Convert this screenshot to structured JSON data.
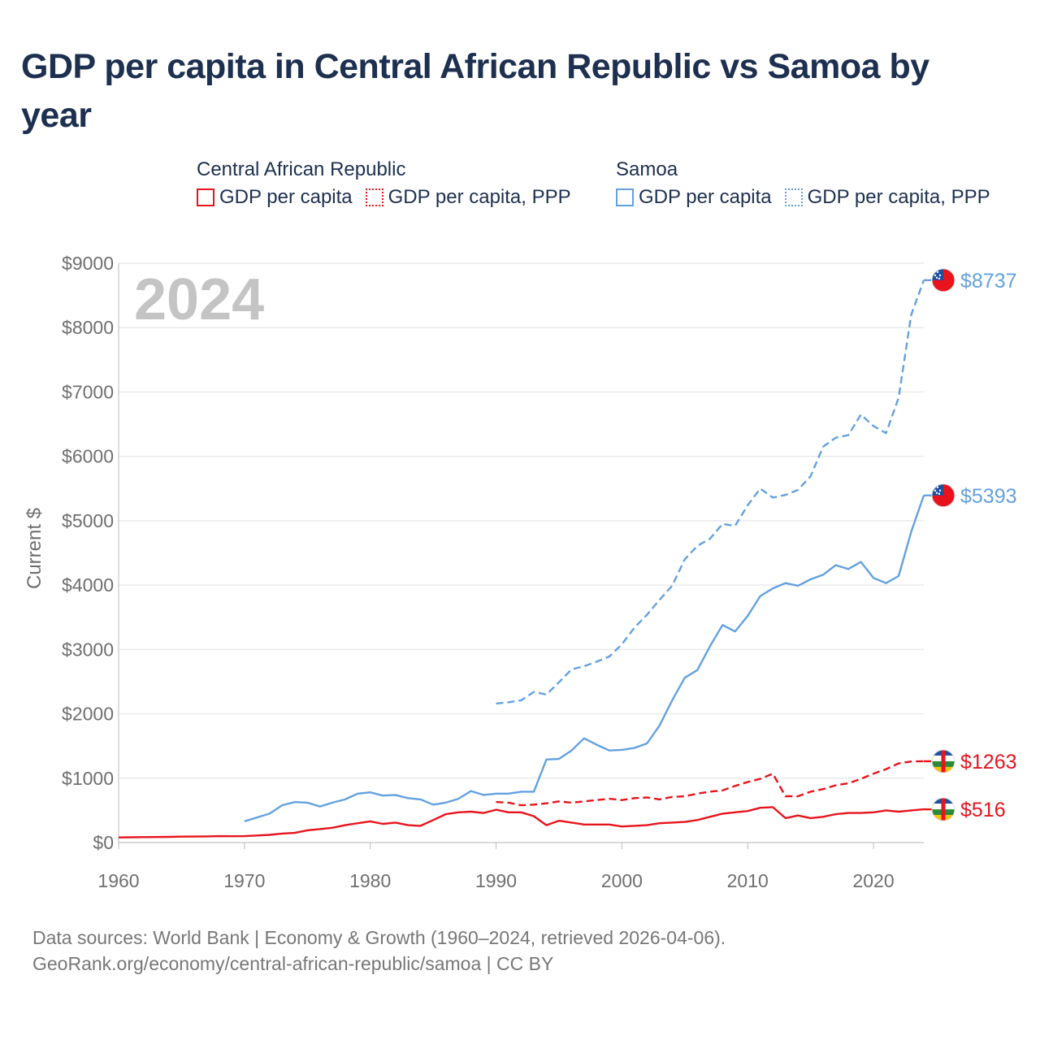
{
  "title": "GDP per capita in Central African Republic vs Samoa by year",
  "legend": {
    "groups": [
      {
        "name": "Central African Republic",
        "color": "#e8141d",
        "items": [
          "GDP per capita",
          "GDP per capita, PPP"
        ]
      },
      {
        "name": "Samoa",
        "color": "#63a1e0",
        "items": [
          "GDP per capita",
          "GDP per capita, PPP"
        ]
      }
    ]
  },
  "source": {
    "line1": "Data sources: World Bank | Economy & Growth (1960–2024, retrieved 2026-04-06).",
    "line2": "GeoRank.org/economy/central-african-republic/samoa | CC BY"
  },
  "chart_data": {
    "type": "line",
    "year_badge": "2024",
    "ylabel": "Current $",
    "xlabel": "",
    "xlim": [
      1960,
      2024
    ],
    "ylim": [
      0,
      9000
    ],
    "grid": true,
    "x_ticks": [
      1960,
      1970,
      1980,
      1990,
      2000,
      2010,
      2020
    ],
    "y_ticks": [
      0,
      1000,
      2000,
      3000,
      4000,
      5000,
      6000,
      7000,
      8000,
      9000
    ],
    "y_tick_labels": [
      "$0",
      "$1000",
      "$2000",
      "$3000",
      "$4000",
      "$5000",
      "$6000",
      "$7000",
      "$8000",
      "$9000"
    ],
    "series": [
      {
        "name": "Samoa GDP per capita, PPP",
        "country": "Samoa",
        "color": "#63a1e0",
        "dash": "dashed",
        "end_label": "$8737",
        "x": [
          1990,
          1991,
          1992,
          1993,
          1994,
          1995,
          1996,
          1997,
          1998,
          1999,
          2000,
          2001,
          2002,
          2003,
          2004,
          2005,
          2006,
          2007,
          2008,
          2009,
          2010,
          2011,
          2012,
          2013,
          2014,
          2015,
          2016,
          2017,
          2018,
          2019,
          2020,
          2021,
          2022,
          2023,
          2024
        ],
        "y": [
          2160,
          2180,
          2210,
          2340,
          2300,
          2490,
          2690,
          2740,
          2810,
          2890,
          3080,
          3340,
          3540,
          3770,
          3990,
          4400,
          4610,
          4720,
          4950,
          4920,
          5240,
          5500,
          5360,
          5400,
          5480,
          5690,
          6150,
          6290,
          6330,
          6650,
          6470,
          6360,
          6910,
          8200,
          8737
        ]
      },
      {
        "name": "Samoa GDP per capita",
        "country": "Samoa",
        "color": "#63a1e0",
        "dash": "solid",
        "end_label": "$5393",
        "x": [
          1970,
          1971,
          1972,
          1973,
          1974,
          1975,
          1976,
          1977,
          1978,
          1979,
          1980,
          1981,
          1982,
          1983,
          1984,
          1985,
          1986,
          1987,
          1988,
          1989,
          1990,
          1991,
          1992,
          1993,
          1994,
          1995,
          1996,
          1997,
          1998,
          1999,
          2000,
          2001,
          2002,
          2003,
          2004,
          2005,
          2006,
          2007,
          2008,
          2009,
          2010,
          2011,
          2012,
          2013,
          2014,
          2015,
          2016,
          2017,
          2018,
          2019,
          2020,
          2021,
          2022,
          2023,
          2024
        ],
        "y": [
          330,
          390,
          450,
          580,
          630,
          620,
          560,
          620,
          670,
          760,
          780,
          730,
          740,
          690,
          670,
          590,
          620,
          680,
          800,
          740,
          760,
          760,
          790,
          790,
          1290,
          1300,
          1430,
          1620,
          1520,
          1430,
          1440,
          1470,
          1540,
          1820,
          2210,
          2560,
          2680,
          3050,
          3380,
          3280,
          3520,
          3830,
          3950,
          4030,
          3990,
          4090,
          4160,
          4310,
          4250,
          4360,
          4110,
          4030,
          4140,
          4830,
          5393
        ]
      },
      {
        "name": "Central African Republic GDP per capita, PPP",
        "country": "Central African Republic",
        "color": "#e8141d",
        "dash": "dashed",
        "end_label": "$1263",
        "x": [
          1990,
          1991,
          1992,
          1993,
          1994,
          1995,
          1996,
          1997,
          1998,
          1999,
          2000,
          2001,
          2002,
          2003,
          2004,
          2005,
          2006,
          2007,
          2008,
          2009,
          2010,
          2011,
          2012,
          2013,
          2014,
          2015,
          2016,
          2017,
          2018,
          2019,
          2020,
          2021,
          2022,
          2023,
          2024
        ],
        "y": [
          630,
          620,
          580,
          590,
          610,
          640,
          620,
          640,
          660,
          680,
          660,
          690,
          700,
          670,
          710,
          720,
          760,
          790,
          810,
          880,
          940,
          990,
          1070,
          720,
          720,
          790,
          830,
          890,
          920,
          990,
          1070,
          1140,
          1230,
          1260,
          1263
        ]
      },
      {
        "name": "Central African Republic GDP per capita",
        "country": "Central African Republic",
        "color": "#e8141d",
        "dash": "solid",
        "end_label": "$516",
        "x": [
          1960,
          1961,
          1962,
          1963,
          1964,
          1965,
          1966,
          1967,
          1968,
          1969,
          1970,
          1971,
          1972,
          1973,
          1974,
          1975,
          1976,
          1977,
          1978,
          1979,
          1980,
          1981,
          1982,
          1983,
          1984,
          1985,
          1986,
          1987,
          1988,
          1989,
          1990,
          1991,
          1992,
          1993,
          1994,
          1995,
          1996,
          1997,
          1998,
          1999,
          2000,
          2001,
          2002,
          2003,
          2004,
          2005,
          2006,
          2007,
          2008,
          2009,
          2010,
          2011,
          2012,
          2013,
          2014,
          2015,
          2016,
          2017,
          2018,
          2019,
          2020,
          2021,
          2022,
          2023,
          2024
        ],
        "y": [
          80,
          82,
          84,
          86,
          88,
          92,
          94,
          96,
          100,
          98,
          100,
          110,
          120,
          140,
          150,
          190,
          210,
          230,
          270,
          300,
          330,
          290,
          310,
          270,
          260,
          350,
          440,
          470,
          480,
          460,
          510,
          470,
          470,
          410,
          270,
          340,
          310,
          280,
          280,
          280,
          250,
          260,
          270,
          300,
          310,
          320,
          350,
          400,
          450,
          470,
          490,
          540,
          550,
          380,
          420,
          380,
          400,
          440,
          460,
          460,
          470,
          500,
          480,
          500,
          516
        ]
      }
    ]
  }
}
